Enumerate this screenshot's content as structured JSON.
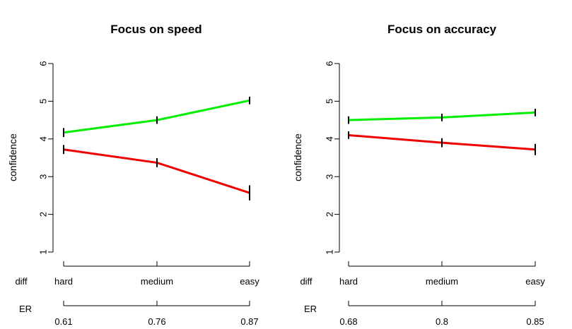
{
  "chart_data": [
    {
      "type": "line",
      "title": "Focus on speed",
      "ylabel": "confidence",
      "ylim": [
        1,
        6
      ],
      "yticks": [
        "1",
        "2",
        "3",
        "4",
        "5",
        "6"
      ],
      "x_axis_name": "diff",
      "categories": [
        "hard",
        "medium",
        "easy"
      ],
      "er_axis_name": "ER",
      "er_labels": [
        "0.61",
        "0.76",
        "0.87"
      ],
      "grid": false,
      "series": [
        {
          "color": "#00ee00",
          "values": [
            4.17,
            4.5,
            5.02
          ],
          "err": [
            0.12,
            0.1,
            0.1
          ]
        },
        {
          "color": "#ee0000",
          "values": [
            3.72,
            3.37,
            2.57
          ],
          "err": [
            0.12,
            0.12,
            0.2
          ]
        }
      ]
    },
    {
      "type": "line",
      "title": "Focus on accuracy",
      "ylabel": "confidence",
      "ylim": [
        1,
        6
      ],
      "yticks": [
        "1",
        "2",
        "3",
        "4",
        "5",
        "6"
      ],
      "x_axis_name": "diff",
      "categories": [
        "hard",
        "medium",
        "easy"
      ],
      "er_axis_name": "ER",
      "er_labels": [
        "0.68",
        "0.8",
        "0.85"
      ],
      "grid": false,
      "series": [
        {
          "color": "#00ee00",
          "values": [
            4.5,
            4.57,
            4.7
          ],
          "err": [
            0.1,
            0.1,
            0.1
          ]
        },
        {
          "color": "#ee0000",
          "values": [
            4.1,
            3.9,
            3.72
          ],
          "err": [
            0.1,
            0.12,
            0.15
          ]
        }
      ]
    }
  ]
}
